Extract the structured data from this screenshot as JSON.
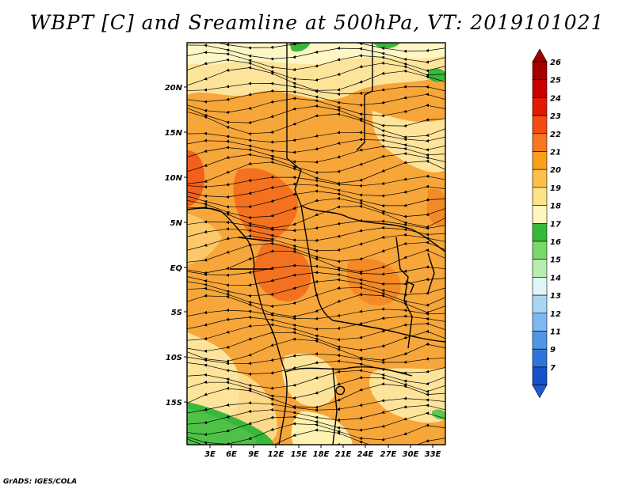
{
  "title": "WBPT [C] and Sreamline at 500hPa, VT: 2019101021",
  "credit": "GrADS: IGES/COLA",
  "map": {
    "lat_labels": [
      "20N",
      "15N",
      "10N",
      "5N",
      "EQ",
      "5S",
      "10S",
      "15S"
    ],
    "lon_labels": [
      "3E",
      "6E",
      "9E",
      "12E",
      "15E",
      "18E",
      "21E",
      "24E",
      "27E",
      "30E",
      "33E"
    ]
  },
  "colorbar": {
    "levels": [
      {
        "label": "26",
        "color": "#a50000"
      },
      {
        "label": "25",
        "color": "#c80000"
      },
      {
        "label": "24",
        "color": "#e11a00"
      },
      {
        "label": "23",
        "color": "#f54a10"
      },
      {
        "label": "22",
        "color": "#f7761f"
      },
      {
        "label": "21",
        "color": "#f9a01b"
      },
      {
        "label": "20",
        "color": "#fbc048"
      },
      {
        "label": "19",
        "color": "#fde388"
      },
      {
        "label": "18",
        "color": "#fef6bc"
      },
      {
        "label": "17",
        "color": "#36b839"
      },
      {
        "label": "16",
        "color": "#7bd66b"
      },
      {
        "label": "15",
        "color": "#b8ecb0"
      },
      {
        "label": "14",
        "color": "#e0f6f8"
      },
      {
        "label": "13",
        "color": "#aad6f5"
      },
      {
        "label": "12",
        "color": "#7db9ee"
      },
      {
        "label": "11",
        "color": "#4f96e6"
      },
      {
        "label": "9",
        "color": "#2f74dc"
      },
      {
        "label": "7",
        "color": "#1750c8"
      }
    ],
    "bottom_arrow_color": "#1e5ad7",
    "top_arrow_color": "#a00000"
  }
}
